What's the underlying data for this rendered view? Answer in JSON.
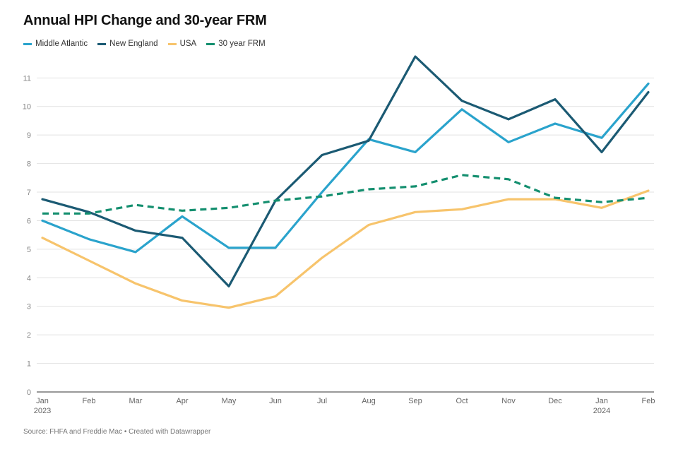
{
  "chart_data": {
    "type": "line",
    "title": "Annual HPI Change and 30-year FRM",
    "xlabel": "",
    "ylabel": "",
    "ylim": [
      0,
      11
    ],
    "yticks": [
      0,
      1,
      2,
      3,
      4,
      5,
      6,
      7,
      8,
      9,
      10,
      11
    ],
    "categories": [
      "Jan",
      "Feb",
      "Mar",
      "Apr",
      "May",
      "Jun",
      "Jul",
      "Aug",
      "Sep",
      "Oct",
      "Nov",
      "Dec",
      "Jan",
      "Feb"
    ],
    "year_labels": [
      "2023",
      "",
      "",
      "",
      "",
      "",
      "",
      "",
      "",
      "",
      "",
      "",
      "2024",
      ""
    ],
    "grid": true,
    "legend_position": "top-left",
    "series": [
      {
        "name": "Middle Atlantic",
        "color": "#2aa3cc",
        "dashed": false,
        "values": [
          6.0,
          5.35,
          4.9,
          6.15,
          5.05,
          5.05,
          7.0,
          8.85,
          8.4,
          9.9,
          8.75,
          9.4,
          8.9,
          10.8
        ]
      },
      {
        "name": "New England",
        "color": "#1b5a73",
        "dashed": false,
        "values": [
          6.75,
          6.3,
          5.65,
          5.4,
          3.7,
          6.7,
          8.3,
          8.8,
          11.75,
          10.2,
          9.55,
          10.25,
          8.4,
          10.5
        ]
      },
      {
        "name": "USA",
        "color": "#f7c46c",
        "dashed": false,
        "values": [
          5.4,
          4.6,
          3.8,
          3.2,
          2.95,
          3.35,
          4.7,
          5.85,
          6.3,
          6.4,
          6.75,
          6.75,
          6.45,
          7.05
        ]
      },
      {
        "name": "30 year FRM",
        "color": "#148f6f",
        "dashed": true,
        "values": [
          6.25,
          6.25,
          6.55,
          6.35,
          6.45,
          6.7,
          6.85,
          7.1,
          7.2,
          7.6,
          7.45,
          6.8,
          6.65,
          6.8
        ]
      }
    ]
  },
  "source": "Source: FHFA and Freddie Mac • Created with Datawrapper"
}
